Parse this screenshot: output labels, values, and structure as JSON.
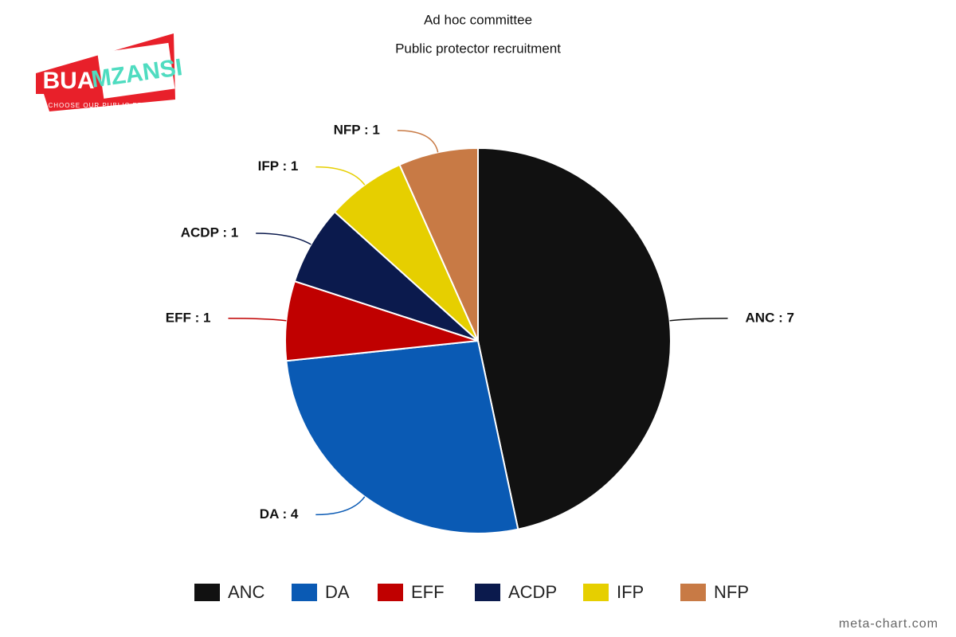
{
  "chart_data": {
    "type": "pie",
    "title": "Ad hoc committee",
    "subtitle": "Public protector recruitment",
    "categories": [
      "ANC",
      "DA",
      "EFF",
      "ACDP",
      "IFP",
      "NFP"
    ],
    "values": [
      7,
      4,
      1,
      1,
      1,
      1
    ],
    "value_labels": [
      "ANC : 7",
      "DA : 4",
      "EFF : 1",
      "ACDP : 1",
      "IFP : 1",
      "NFP : 1"
    ],
    "colors": [
      "#111111",
      "#0a5ab4",
      "#c00000",
      "#0b1a4d",
      "#e6cf00",
      "#c87a45"
    ],
    "legend": "bottom"
  },
  "logo": {
    "left": "BUA",
    "right": "MZANSI",
    "tagline": "CHOOSE OUR PUBLIC PROTECTOR"
  },
  "watermark": "meta-chart.com"
}
